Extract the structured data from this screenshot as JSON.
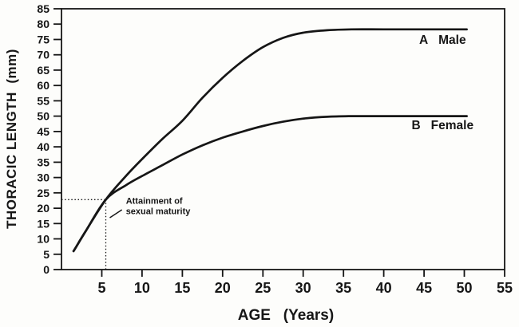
{
  "figure": {
    "background": "#fdfdfb",
    "ink_color": "#161616"
  },
  "chart_data": {
    "type": "line",
    "title": "",
    "xlabel": "AGE   (Years)",
    "ylabel": "THORACIC LENGTH  (mm)",
    "xlim": [
      0,
      55
    ],
    "ylim": [
      0,
      85
    ],
    "xticks": [
      5,
      10,
      15,
      20,
      25,
      30,
      35,
      40,
      45,
      50,
      55
    ],
    "yticks": [
      0,
      5,
      10,
      15,
      20,
      25,
      30,
      35,
      40,
      45,
      50,
      55,
      60,
      65,
      70,
      75,
      80,
      85
    ],
    "grid": false,
    "legend_position": "inline-right",
    "series": [
      {
        "letter": "A",
        "name": "Male",
        "plateau_value": 78,
        "label_x": 47.3,
        "label_y": 74.8,
        "points": [
          [
            1.5,
            6
          ],
          [
            3,
            12.5
          ],
          [
            5.5,
            22.8
          ],
          [
            8,
            30.5
          ],
          [
            10,
            36
          ],
          [
            12.5,
            42.5
          ],
          [
            15,
            48.5
          ],
          [
            17.5,
            56
          ],
          [
            20,
            62.5
          ],
          [
            22.5,
            68
          ],
          [
            25,
            72.5
          ],
          [
            27.5,
            75.5
          ],
          [
            30,
            77.2
          ],
          [
            33,
            78
          ],
          [
            36,
            78.3
          ],
          [
            40,
            78.3
          ],
          [
            45,
            78.3
          ],
          [
            50.3,
            78.3
          ]
        ]
      },
      {
        "letter": "B",
        "name": "Female",
        "plateau_value": 50,
        "label_x": 47.3,
        "label_y": 47.0,
        "points": [
          [
            1.5,
            6
          ],
          [
            3,
            12.5
          ],
          [
            5.5,
            22.8
          ],
          [
            8,
            27.5
          ],
          [
            10,
            30.5
          ],
          [
            12.5,
            34
          ],
          [
            15,
            37.5
          ],
          [
            17.5,
            40.5
          ],
          [
            20,
            43
          ],
          [
            22.5,
            45
          ],
          [
            25,
            46.8
          ],
          [
            27.5,
            48.2
          ],
          [
            30,
            49.2
          ],
          [
            33,
            49.8
          ],
          [
            36,
            50
          ],
          [
            40,
            50
          ],
          [
            45,
            50
          ],
          [
            50.3,
            50
          ]
        ]
      }
    ],
    "annotation": {
      "line1": "Attainment of",
      "line2": "sexual maturity",
      "marker_x": 5.5,
      "marker_y": 22.8,
      "text_x": 8.0,
      "text_y_line1": 21.5,
      "text_y_line2": 18.1,
      "leader": {
        "x1": 7.5,
        "y1": 19.5,
        "x2": 6.0,
        "y2": 16.9
      }
    }
  }
}
